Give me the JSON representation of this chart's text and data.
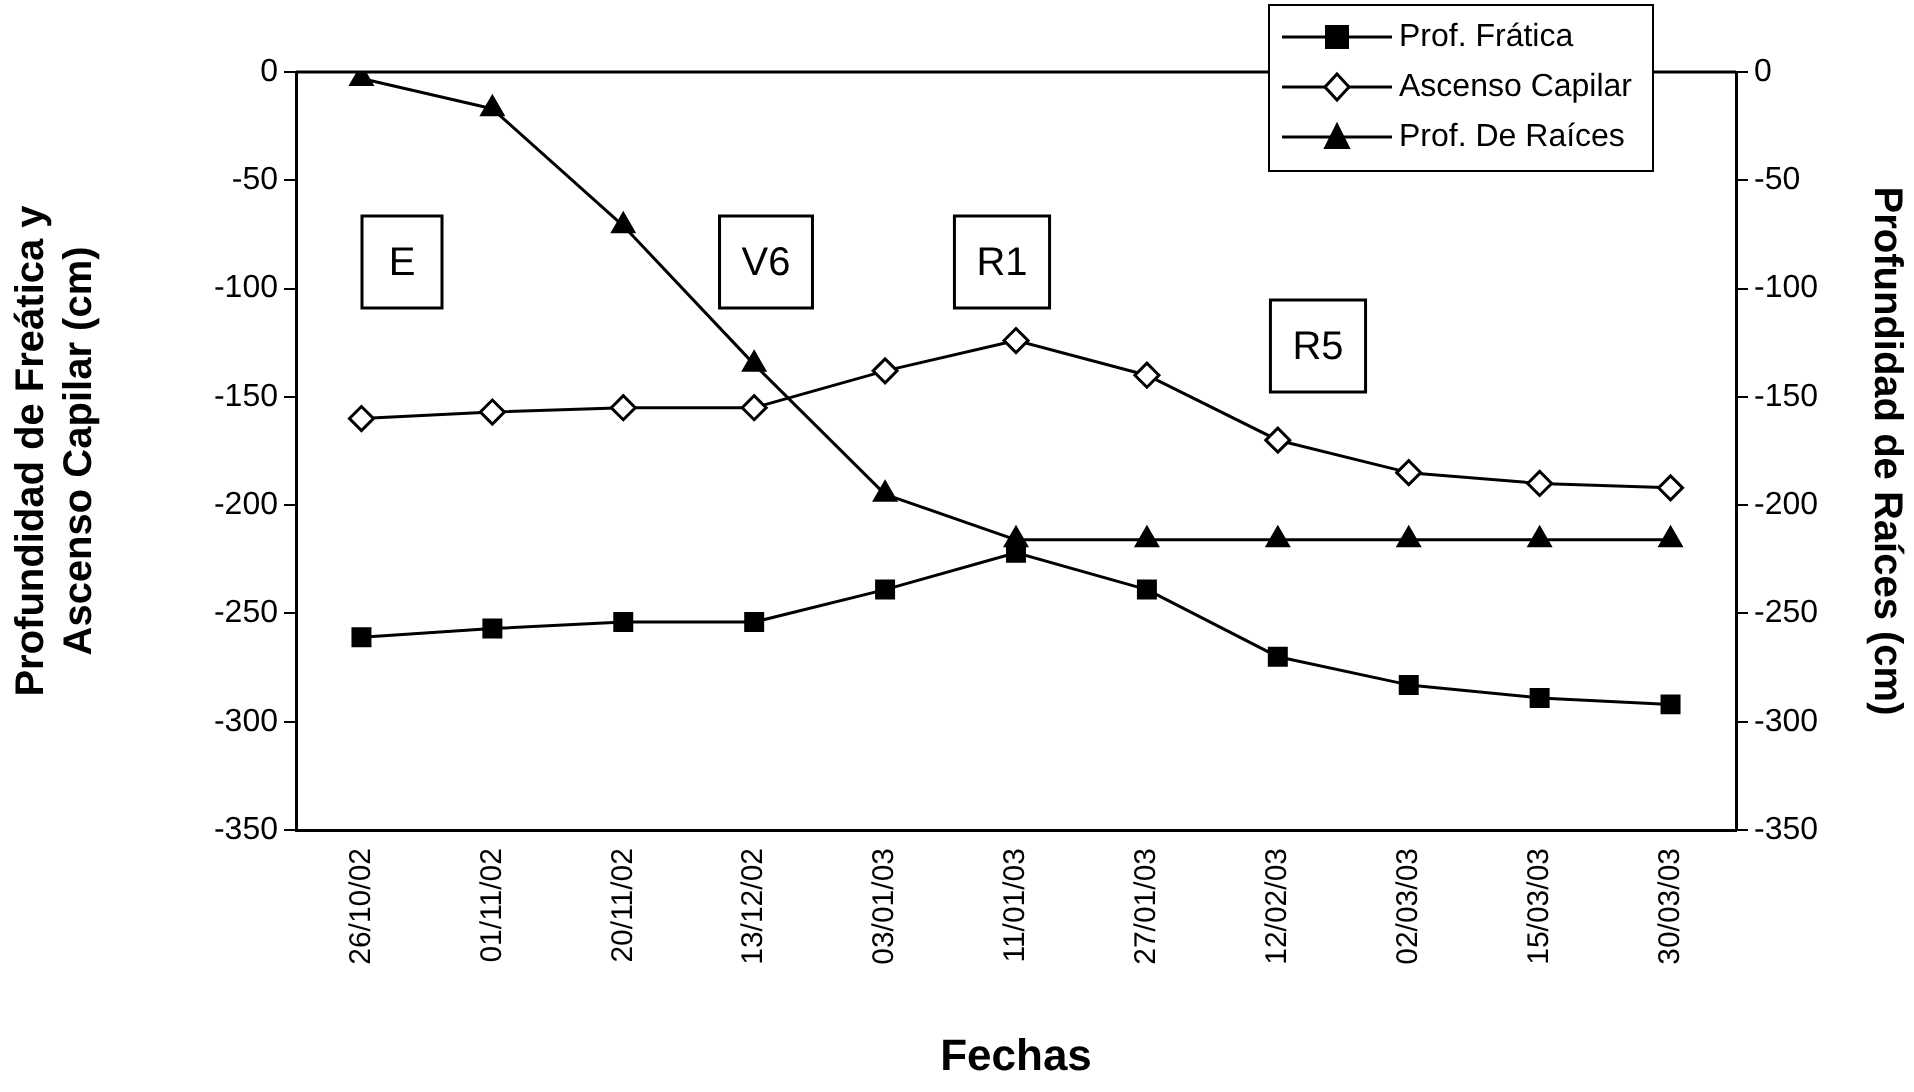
{
  "chart_data": {
    "type": "line",
    "categories": [
      "26/10/02",
      "01/11/02",
      "20/11/02",
      "13/12/02",
      "03/01/03",
      "11/01/03",
      "27/01/03",
      "12/02/03",
      "02/03/03",
      "15/03/03",
      "30/03/03"
    ],
    "series": [
      {
        "name": "Prof. Frática",
        "color": "#000000",
        "marker": "square",
        "values": [
          -261,
          -257,
          -254,
          -254,
          -239,
          -222,
          -239,
          -270,
          -283,
          -289,
          -292
        ]
      },
      {
        "name": "Ascenso Capilar",
        "color": "#000000",
        "marker": "diamond",
        "values": [
          -160,
          -157,
          -155,
          -155,
          -138,
          -124,
          -140,
          -170,
          -185,
          -190,
          -192
        ]
      },
      {
        "name": "Prof. De Raíces",
        "color": "#000000",
        "marker": "triangle",
        "values": [
          -3,
          -17,
          -71,
          -135,
          -195,
          -216,
          -216,
          -216,
          -216,
          -216,
          -216
        ]
      }
    ],
    "xlabel": "Fechas",
    "ylabel": "Profundidad de Freática y\nAscenso Capilar (cm)",
    "y2label": "Profundidad de Raíces (cm)",
    "ylim": [
      -350,
      0
    ],
    "yticks": [
      -350,
      -300,
      -250,
      -200,
      -150,
      -100,
      -50,
      0
    ],
    "y2lim": [
      -350,
      0
    ],
    "y2ticks": [
      -350,
      -300,
      -250,
      -200,
      -150,
      -100,
      -50,
      0
    ],
    "annotations": [
      "E",
      "V6",
      "R1",
      "R5"
    ],
    "grid": false,
    "legend": "top right",
    "line_style": "solid"
  }
}
